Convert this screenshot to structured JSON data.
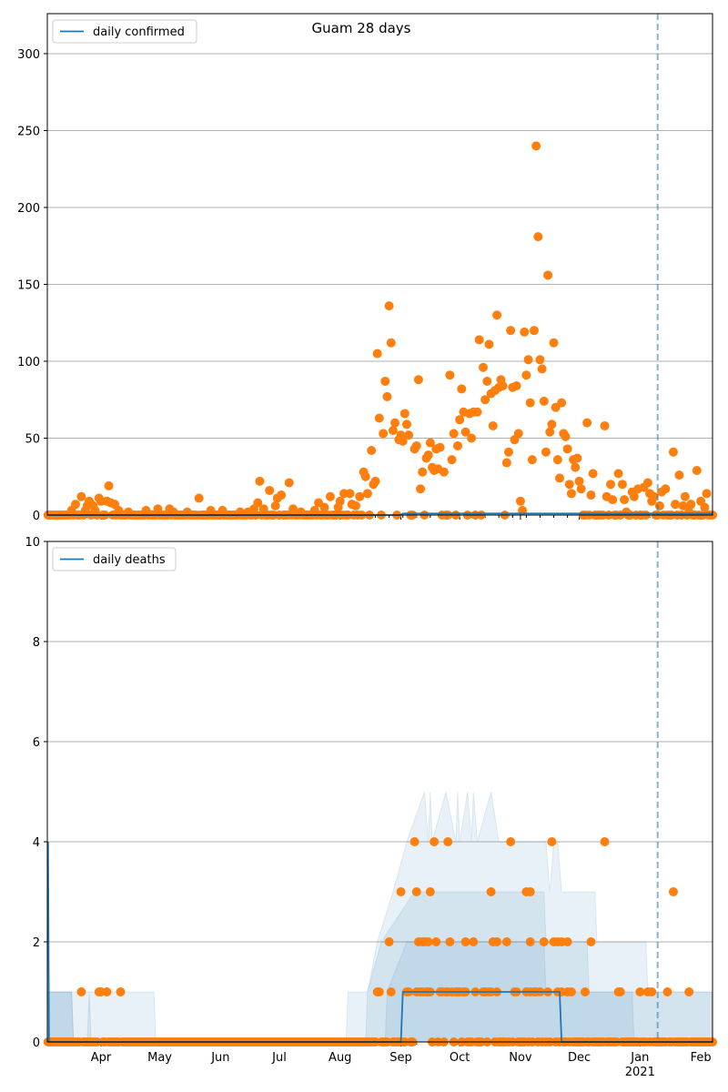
{
  "chart_data": [
    {
      "type": "scatter",
      "title": "Guam 28 days",
      "legend": {
        "label": "daily confirmed",
        "placement": "top-left"
      },
      "x_start": "2020-03-05",
      "x_days": 340,
      "ylim": [
        0,
        326
      ],
      "yticks": [
        0,
        50,
        100,
        150,
        200,
        250,
        300
      ],
      "grid": "horizontal",
      "vline_day": 311,
      "line": [
        [
          0,
          0
        ],
        [
          180,
          0
        ],
        [
          181,
          1
        ],
        [
          311,
          1
        ],
        [
          339,
          1
        ]
      ],
      "default_value": 0,
      "points": [
        [
          12,
          3
        ],
        [
          14,
          7
        ],
        [
          17,
          12
        ],
        [
          19,
          3
        ],
        [
          20,
          6
        ],
        [
          21,
          9
        ],
        [
          23,
          6
        ],
        [
          24,
          3
        ],
        [
          26,
          11
        ],
        [
          27,
          9
        ],
        [
          30,
          9
        ],
        [
          31,
          19
        ],
        [
          32,
          8
        ],
        [
          34,
          7
        ],
        [
          36,
          3
        ],
        [
          41,
          2
        ],
        [
          50,
          3
        ],
        [
          56,
          4
        ],
        [
          62,
          4
        ],
        [
          64,
          2
        ],
        [
          71,
          2
        ],
        [
          77,
          11
        ],
        [
          83,
          3
        ],
        [
          89,
          3
        ],
        [
          98,
          2
        ],
        [
          102,
          2
        ],
        [
          105,
          4
        ],
        [
          107,
          8
        ],
        [
          108,
          22
        ],
        [
          110,
          4
        ],
        [
          113,
          16
        ],
        [
          116,
          6
        ],
        [
          117,
          11
        ],
        [
          119,
          13
        ],
        [
          123,
          21
        ],
        [
          125,
          4
        ],
        [
          129,
          2
        ],
        [
          136,
          3
        ],
        [
          138,
          8
        ],
        [
          141,
          5
        ],
        [
          144,
          12
        ],
        [
          148,
          5
        ],
        [
          149,
          9
        ],
        [
          151,
          14
        ],
        [
          154,
          14
        ],
        [
          155,
          7
        ],
        [
          157,
          6
        ],
        [
          159,
          12
        ],
        [
          161,
          28
        ],
        [
          162,
          25
        ],
        [
          163,
          14
        ],
        [
          165,
          42
        ],
        [
          166,
          20
        ],
        [
          167,
          22
        ],
        [
          168,
          105
        ],
        [
          169,
          63
        ],
        [
          171,
          53
        ],
        [
          172,
          87
        ],
        [
          173,
          77
        ],
        [
          174,
          136
        ],
        [
          175,
          112
        ],
        [
          176,
          55
        ],
        [
          177,
          60
        ],
        [
          179,
          49
        ],
        [
          180,
          52
        ],
        [
          181,
          48
        ],
        [
          182,
          66
        ],
        [
          183,
          59
        ],
        [
          184,
          52
        ],
        [
          187,
          43
        ],
        [
          188,
          45
        ],
        [
          189,
          88
        ],
        [
          190,
          17
        ],
        [
          191,
          28
        ],
        [
          193,
          37
        ],
        [
          194,
          39
        ],
        [
          195,
          47
        ],
        [
          196,
          31
        ],
        [
          197,
          29
        ],
        [
          198,
          43
        ],
        [
          199,
          30
        ],
        [
          200,
          44
        ],
        [
          202,
          28
        ],
        [
          205,
          91
        ],
        [
          206,
          36
        ],
        [
          207,
          53
        ],
        [
          209,
          45
        ],
        [
          210,
          62
        ],
        [
          211,
          82
        ],
        [
          212,
          67
        ],
        [
          213,
          54
        ],
        [
          215,
          66
        ],
        [
          216,
          50
        ],
        [
          217,
          67
        ],
        [
          219,
          67
        ],
        [
          220,
          114
        ],
        [
          222,
          96
        ],
        [
          223,
          75
        ],
        [
          224,
          87
        ],
        [
          225,
          111
        ],
        [
          226,
          79
        ],
        [
          227,
          58
        ],
        [
          228,
          81
        ],
        [
          229,
          130
        ],
        [
          230,
          83
        ],
        [
          231,
          88
        ],
        [
          232,
          84
        ],
        [
          234,
          34
        ],
        [
          235,
          41
        ],
        [
          236,
          120
        ],
        [
          237,
          83
        ],
        [
          238,
          49
        ],
        [
          239,
          84
        ],
        [
          240,
          53
        ],
        [
          241,
          9
        ],
        [
          242,
          3
        ],
        [
          243,
          119
        ],
        [
          244,
          91
        ],
        [
          245,
          101
        ],
        [
          246,
          73
        ],
        [
          247,
          36
        ],
        [
          248,
          120
        ],
        [
          249,
          240
        ],
        [
          250,
          181
        ],
        [
          251,
          101
        ],
        [
          252,
          95
        ],
        [
          253,
          74
        ],
        [
          254,
          41
        ],
        [
          255,
          156
        ],
        [
          256,
          54
        ],
        [
          257,
          59
        ],
        [
          258,
          112
        ],
        [
          259,
          70
        ],
        [
          260,
          36
        ],
        [
          261,
          24
        ],
        [
          262,
          73
        ],
        [
          263,
          53
        ],
        [
          264,
          51
        ],
        [
          265,
          43
        ],
        [
          266,
          20
        ],
        [
          267,
          14
        ],
        [
          268,
          36
        ],
        [
          269,
          31
        ],
        [
          270,
          37
        ],
        [
          271,
          22
        ],
        [
          272,
          17
        ],
        [
          275,
          60
        ],
        [
          277,
          13
        ],
        [
          278,
          27
        ],
        [
          284,
          58
        ],
        [
          285,
          12
        ],
        [
          287,
          20
        ],
        [
          288,
          10
        ],
        [
          291,
          27
        ],
        [
          293,
          20
        ],
        [
          294,
          10
        ],
        [
          295,
          2
        ],
        [
          298,
          15
        ],
        [
          299,
          12
        ],
        [
          301,
          17
        ],
        [
          304,
          18
        ],
        [
          306,
          21
        ],
        [
          307,
          14
        ],
        [
          308,
          9
        ],
        [
          309,
          12
        ],
        [
          312,
          6
        ],
        [
          313,
          15
        ],
        [
          315,
          17
        ],
        [
          319,
          41
        ],
        [
          320,
          7
        ],
        [
          322,
          26
        ],
        [
          324,
          6
        ],
        [
          325,
          12
        ],
        [
          327,
          2
        ],
        [
          328,
          7
        ],
        [
          331,
          29
        ],
        [
          333,
          9
        ],
        [
          335,
          5
        ],
        [
          336,
          14
        ]
      ]
    },
    {
      "type": "scatter",
      "legend": {
        "label": "daily deaths",
        "placement": "top-left"
      },
      "x_start": "2020-03-05",
      "x_days": 340,
      "ylim": [
        0,
        10
      ],
      "yticks": [
        0,
        2,
        4,
        6,
        8,
        10
      ],
      "grid": "horizontal",
      "vline_day": 311,
      "line": [
        [
          0,
          4
        ],
        [
          0.5,
          0
        ],
        [
          180,
          0
        ],
        [
          181,
          1
        ],
        [
          261,
          1
        ],
        [
          262,
          0
        ],
        [
          339,
          0
        ]
      ],
      "bands": [
        [
          [
            0,
            1
          ],
          [
            54,
            1
          ],
          [
            55,
            0
          ],
          [
            152,
            0
          ],
          [
            153,
            1
          ],
          [
            163,
            1
          ],
          [
            168,
            2
          ],
          [
            176,
            3
          ],
          [
            183,
            4
          ],
          [
            192,
            5
          ],
          [
            194,
            4
          ],
          [
            195,
            5
          ],
          [
            196,
            4
          ],
          [
            203,
            5
          ],
          [
            208,
            4
          ],
          [
            209,
            5
          ],
          [
            210,
            4
          ],
          [
            214,
            5
          ],
          [
            216,
            4
          ],
          [
            217,
            5
          ],
          [
            219,
            4
          ],
          [
            226,
            5
          ],
          [
            230,
            4
          ],
          [
            254,
            4
          ],
          [
            256,
            3
          ],
          [
            258,
            4
          ],
          [
            260,
            4
          ],
          [
            262,
            3
          ],
          [
            279,
            3
          ],
          [
            280,
            2
          ],
          [
            305,
            2
          ],
          [
            306,
            1
          ],
          [
            339,
            1
          ]
        ],
        [
          [
            0,
            1
          ],
          [
            12,
            1
          ],
          [
            13,
            0
          ],
          [
            20,
            0
          ],
          [
            21,
            1
          ],
          [
            22,
            0
          ],
          [
            162,
            0
          ],
          [
            163,
            1
          ],
          [
            170,
            2
          ],
          [
            187,
            3
          ],
          [
            253,
            3
          ],
          [
            254,
            2
          ],
          [
            275,
            2
          ],
          [
            276,
            1
          ],
          [
            339,
            1
          ]
        ],
        [
          [
            0,
            1
          ],
          [
            12,
            1
          ],
          [
            13,
            0
          ],
          [
            172,
            0
          ],
          [
            173,
            1
          ],
          [
            183,
            2
          ],
          [
            253,
            2
          ],
          [
            254,
            1
          ],
          [
            298,
            1
          ],
          [
            299,
            0
          ],
          [
            339,
            0
          ]
        ]
      ],
      "default_value": 0,
      "points": [
        [
          17,
          1
        ],
        [
          26,
          1
        ],
        [
          27,
          1
        ],
        [
          30,
          1
        ],
        [
          37,
          1
        ],
        [
          168,
          1
        ],
        [
          169,
          1
        ],
        [
          175,
          1
        ],
        [
          183,
          1
        ],
        [
          184,
          1
        ],
        [
          188,
          1
        ],
        [
          190,
          1
        ],
        [
          191,
          1
        ],
        [
          193,
          1
        ],
        [
          194,
          1
        ],
        [
          195,
          1
        ],
        [
          200,
          1
        ],
        [
          201,
          1
        ],
        [
          203,
          1
        ],
        [
          204,
          1
        ],
        [
          206,
          1
        ],
        [
          208,
          1
        ],
        [
          209,
          1
        ],
        [
          210,
          1
        ],
        [
          212,
          1
        ],
        [
          213,
          1
        ],
        [
          218,
          1
        ],
        [
          222,
          1
        ],
        [
          223,
          1
        ],
        [
          225,
          1
        ],
        [
          226,
          1
        ],
        [
          229,
          1
        ],
        [
          238,
          1
        ],
        [
          239,
          1
        ],
        [
          244,
          1
        ],
        [
          246,
          1
        ],
        [
          248,
          1
        ],
        [
          249,
          1
        ],
        [
          251,
          1
        ],
        [
          255,
          1
        ],
        [
          260,
          1
        ],
        [
          262,
          1
        ],
        [
          265,
          1
        ],
        [
          267,
          1
        ],
        [
          274,
          1
        ],
        [
          291,
          1
        ],
        [
          292,
          1
        ],
        [
          302,
          1
        ],
        [
          306,
          1
        ],
        [
          308,
          1
        ],
        [
          316,
          1
        ],
        [
          327,
          1
        ],
        [
          174,
          2
        ],
        [
          189,
          2
        ],
        [
          191,
          2
        ],
        [
          192,
          2
        ],
        [
          194,
          2
        ],
        [
          198,
          2
        ],
        [
          205,
          2
        ],
        [
          213,
          2
        ],
        [
          217,
          2
        ],
        [
          227,
          2
        ],
        [
          229,
          2
        ],
        [
          234,
          2
        ],
        [
          246,
          2
        ],
        [
          253,
          2
        ],
        [
          258,
          2
        ],
        [
          260,
          2
        ],
        [
          262,
          2
        ],
        [
          265,
          2
        ],
        [
          277,
          2
        ],
        [
          180,
          3
        ],
        [
          188,
          3
        ],
        [
          195,
          3
        ],
        [
          226,
          3
        ],
        [
          244,
          3
        ],
        [
          246,
          3
        ],
        [
          319,
          3
        ],
        [
          187,
          4
        ],
        [
          197,
          4
        ],
        [
          204,
          4
        ],
        [
          236,
          4
        ],
        [
          257,
          4
        ],
        [
          284,
          4
        ]
      ]
    }
  ],
  "x_ticks": [
    {
      "day": 27,
      "label": "Apr"
    },
    {
      "day": 57,
      "label": "May"
    },
    {
      "day": 88,
      "label": "Jun"
    },
    {
      "day": 118,
      "label": "Jul"
    },
    {
      "day": 149,
      "label": "Aug"
    },
    {
      "day": 180,
      "label": "Sep"
    },
    {
      "day": 210,
      "label": "Oct"
    },
    {
      "day": 241,
      "label": "Nov"
    },
    {
      "day": 271,
      "label": "Dec"
    },
    {
      "day": 302,
      "label": "Jan",
      "sub": "2021"
    },
    {
      "day": 333,
      "label": "Feb"
    }
  ],
  "colors": {
    "line": "#1f77b4",
    "points": "#ff7f0e",
    "grid": "#b0b0b0"
  }
}
